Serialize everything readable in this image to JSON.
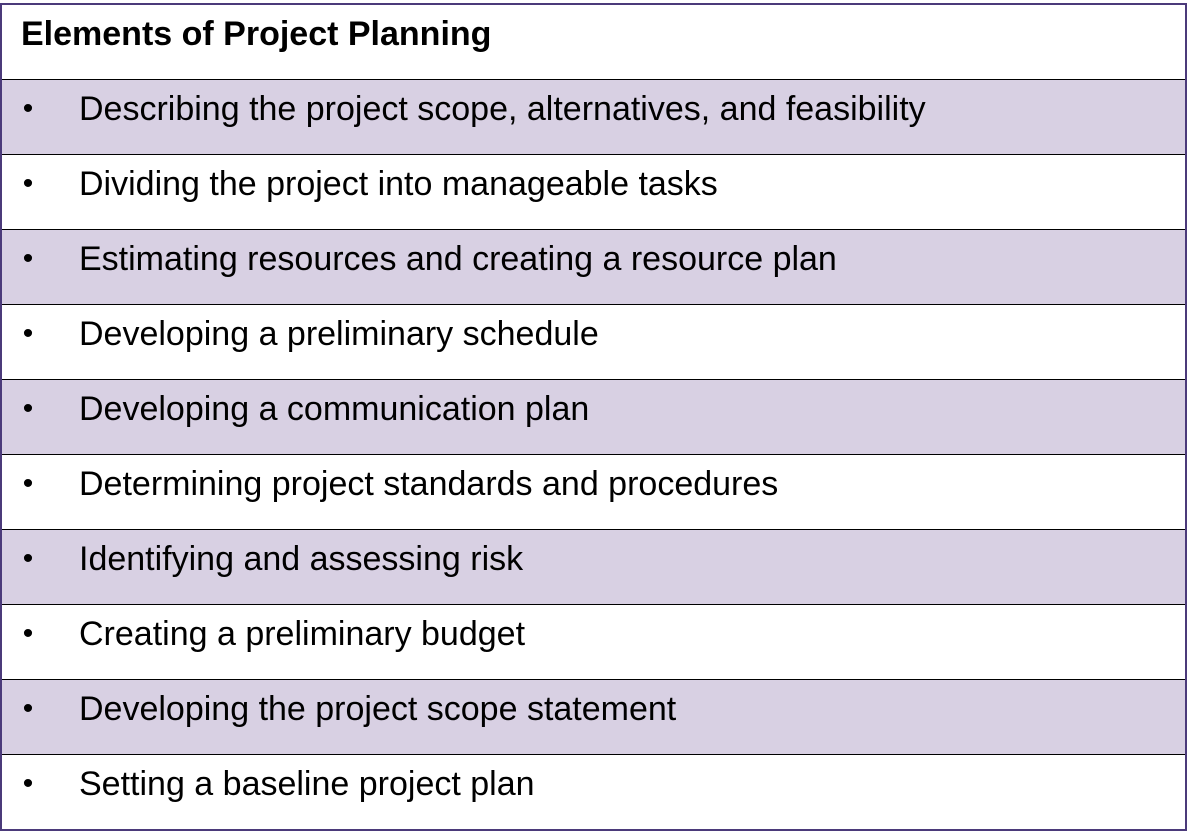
{
  "table": {
    "title": "Elements of Project Planning",
    "bullet": "•",
    "shade_color": "#d8d0e3",
    "border_color": "#4b3a7a",
    "items": [
      "Describing the project scope, alternatives, and feasibility",
      "Dividing the project into manageable tasks",
      "Estimating resources and creating a resource plan",
      "Developing a preliminary schedule",
      "Developing a communication plan",
      "Determining project standards and procedures",
      "Identifying and assessing risk",
      "Creating a preliminary budget",
      "Developing the project scope statement",
      "Setting a baseline project plan"
    ]
  }
}
